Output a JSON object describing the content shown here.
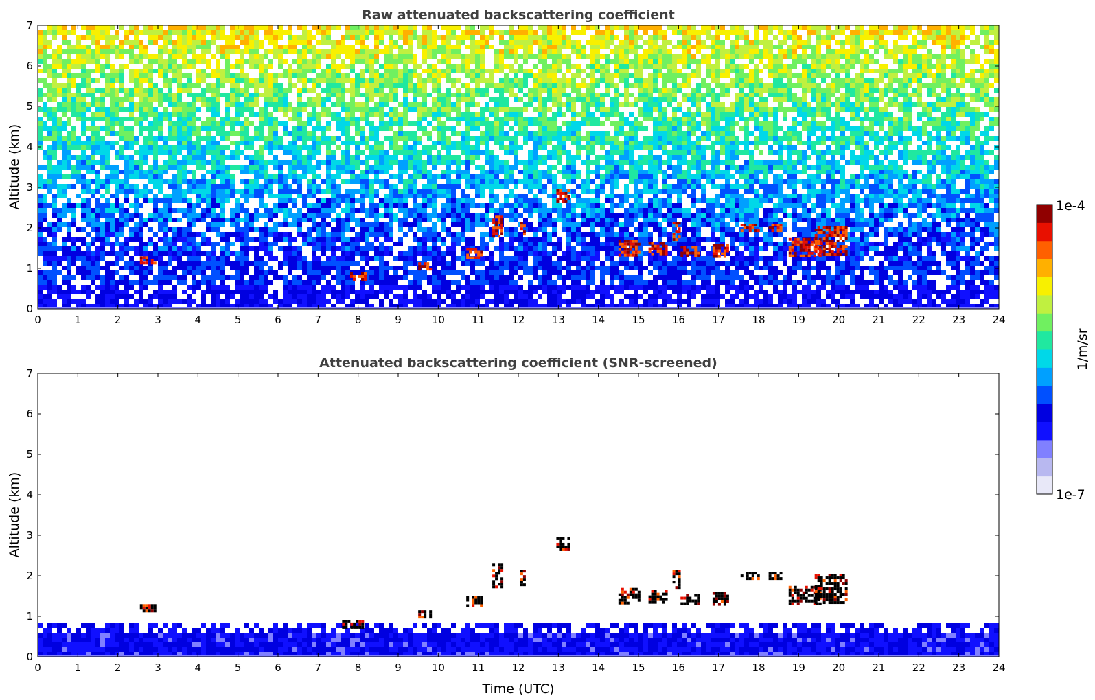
{
  "chart_data": [
    {
      "type": "heatmap",
      "title": "Raw attenuated backscattering coefficient",
      "xlabel": "",
      "ylabel": "Altitude (km)",
      "xlim": [
        0,
        24
      ],
      "ylim": [
        0,
        7
      ],
      "xticks": [
        "0",
        "1",
        "2",
        "3",
        "4",
        "5",
        "6",
        "7",
        "8",
        "9",
        "10",
        "11",
        "12",
        "13",
        "14",
        "15",
        "16",
        "17",
        "18",
        "19",
        "20",
        "21",
        "22",
        "23",
        "24"
      ],
      "yticks": [
        "0",
        "1",
        "2",
        "3",
        "4",
        "5",
        "6",
        "7"
      ],
      "screened": false,
      "clouds": [
        {
          "t0": 2.55,
          "t1": 2.9,
          "z0": 1.1,
          "z1": 1.3
        },
        {
          "t0": 7.8,
          "t1": 8.2,
          "z0": 0.7,
          "z1": 0.9
        },
        {
          "t0": 9.5,
          "t1": 9.8,
          "z0": 1.0,
          "z1": 1.15
        },
        {
          "t0": 10.7,
          "t1": 11.1,
          "z0": 1.25,
          "z1": 1.5
        },
        {
          "t0": 11.35,
          "t1": 11.6,
          "z0": 1.75,
          "z1": 2.3
        },
        {
          "t0": 12.05,
          "t1": 12.15,
          "z0": 1.8,
          "z1": 2.15
        },
        {
          "t0": 12.95,
          "t1": 13.25,
          "z0": 2.65,
          "z1": 2.95
        },
        {
          "t0": 14.5,
          "t1": 15.0,
          "z0": 1.3,
          "z1": 1.7
        },
        {
          "t0": 15.25,
          "t1": 15.7,
          "z0": 1.35,
          "z1": 1.65
        },
        {
          "t0": 15.85,
          "t1": 16.05,
          "z0": 1.7,
          "z1": 2.15
        },
        {
          "t0": 16.05,
          "t1": 16.5,
          "z0": 1.3,
          "z1": 1.55
        },
        {
          "t0": 16.85,
          "t1": 17.25,
          "z0": 1.3,
          "z1": 1.6
        },
        {
          "t0": 17.55,
          "t1": 18.0,
          "z0": 1.95,
          "z1": 2.1
        },
        {
          "t0": 18.25,
          "t1": 18.55,
          "z0": 1.9,
          "z1": 2.1
        },
        {
          "t0": 18.75,
          "t1": 19.55,
          "z0": 1.3,
          "z1": 1.75
        },
        {
          "t0": 19.4,
          "t1": 20.2,
          "z0": 1.35,
          "z1": 2.05
        }
      ]
    },
    {
      "type": "heatmap",
      "title": "Attenuated backscattering coefficient (SNR-screened)",
      "xlabel": "Time (UTC)",
      "ylabel": "Altitude (km)",
      "xlim": [
        0,
        24
      ],
      "ylim": [
        0,
        7
      ],
      "xticks": [
        "0",
        "1",
        "2",
        "3",
        "4",
        "5",
        "6",
        "7",
        "8",
        "9",
        "10",
        "11",
        "12",
        "13",
        "14",
        "15",
        "16",
        "17",
        "18",
        "19",
        "20",
        "21",
        "22",
        "23",
        "24"
      ],
      "yticks": [
        "0",
        "1",
        "2",
        "3",
        "4",
        "5",
        "6",
        "7"
      ],
      "screened": true,
      "clouds": [
        {
          "t0": 2.55,
          "t1": 2.9,
          "z0": 1.1,
          "z1": 1.3
        },
        {
          "t0": 7.6,
          "t1": 8.1,
          "z0": 0.7,
          "z1": 0.9
        },
        {
          "t0": 9.5,
          "t1": 9.8,
          "z0": 1.0,
          "z1": 1.15
        },
        {
          "t0": 10.7,
          "t1": 11.1,
          "z0": 1.25,
          "z1": 1.5
        },
        {
          "t0": 11.35,
          "t1": 11.6,
          "z0": 1.75,
          "z1": 2.3
        },
        {
          "t0": 12.05,
          "t1": 12.15,
          "z0": 1.8,
          "z1": 2.15
        },
        {
          "t0": 12.95,
          "t1": 13.25,
          "z0": 2.65,
          "z1": 2.95
        },
        {
          "t0": 14.5,
          "t1": 15.0,
          "z0": 1.3,
          "z1": 1.7
        },
        {
          "t0": 15.25,
          "t1": 15.7,
          "z0": 1.35,
          "z1": 1.65
        },
        {
          "t0": 15.85,
          "t1": 16.05,
          "z0": 1.7,
          "z1": 2.15
        },
        {
          "t0": 16.05,
          "t1": 16.5,
          "z0": 1.3,
          "z1": 1.55
        },
        {
          "t0": 16.85,
          "t1": 17.25,
          "z0": 1.3,
          "z1": 1.6
        },
        {
          "t0": 17.55,
          "t1": 18.0,
          "z0": 1.95,
          "z1": 2.1
        },
        {
          "t0": 18.25,
          "t1": 18.55,
          "z0": 1.9,
          "z1": 2.1
        },
        {
          "t0": 18.75,
          "t1": 19.55,
          "z0": 1.3,
          "z1": 1.75
        },
        {
          "t0": 19.4,
          "t1": 20.2,
          "z0": 1.35,
          "z1": 2.05
        }
      ]
    }
  ],
  "colorbar": {
    "max_label": "1e-4",
    "min_label": "1e-7",
    "unit_label": "1/m/sr",
    "colors": [
      "#e8e8f8",
      "#b8b8f0",
      "#8080ff",
      "#1010ff",
      "#0000e0",
      "#0050ff",
      "#00a0ff",
      "#00d8e8",
      "#20e8a0",
      "#70f060",
      "#c0f040",
      "#f8f000",
      "#ffb000",
      "#ff6000",
      "#e81000",
      "#900000"
    ]
  }
}
